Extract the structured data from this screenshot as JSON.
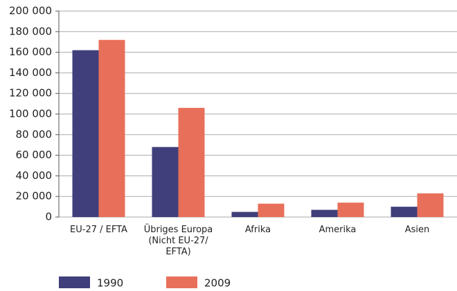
{
  "chart_data": {
    "type": "bar",
    "categories": [
      "EU-27 / EFTA",
      "Übriges Europa\n(Nicht EU-27/\nEFTA)",
      "Afrika",
      "Amerika",
      "Asien"
    ],
    "series": [
      {
        "name": "1990",
        "color": "#403f7b",
        "values": [
          162000,
          68000,
          5000,
          7000,
          10000
        ]
      },
      {
        "name": "2009",
        "color": "#e8705a",
        "values": [
          172000,
          106000,
          13000,
          14000,
          23000
        ]
      }
    ],
    "ylim": [
      0,
      200000
    ],
    "yticks": [
      0,
      {
        "value": 20000,
        "label": "20 000"
      },
      {
        "value": 40000,
        "label": "40 000"
      },
      {
        "value": 60000,
        "label": "60 000"
      },
      {
        "value": 80000,
        "label": "80 000"
      },
      {
        "value": 100000,
        "label": "100 000"
      },
      {
        "value": 120000,
        "label": "120 000"
      },
      {
        "value": 140000,
        "label": "140 000"
      },
      {
        "value": 160000,
        "label": "160 000"
      },
      {
        "value": 180000,
        "label": "180 000"
      },
      {
        "value": 200000,
        "label": "200 000"
      }
    ],
    "grid": true,
    "legend": "bottom-left"
  }
}
